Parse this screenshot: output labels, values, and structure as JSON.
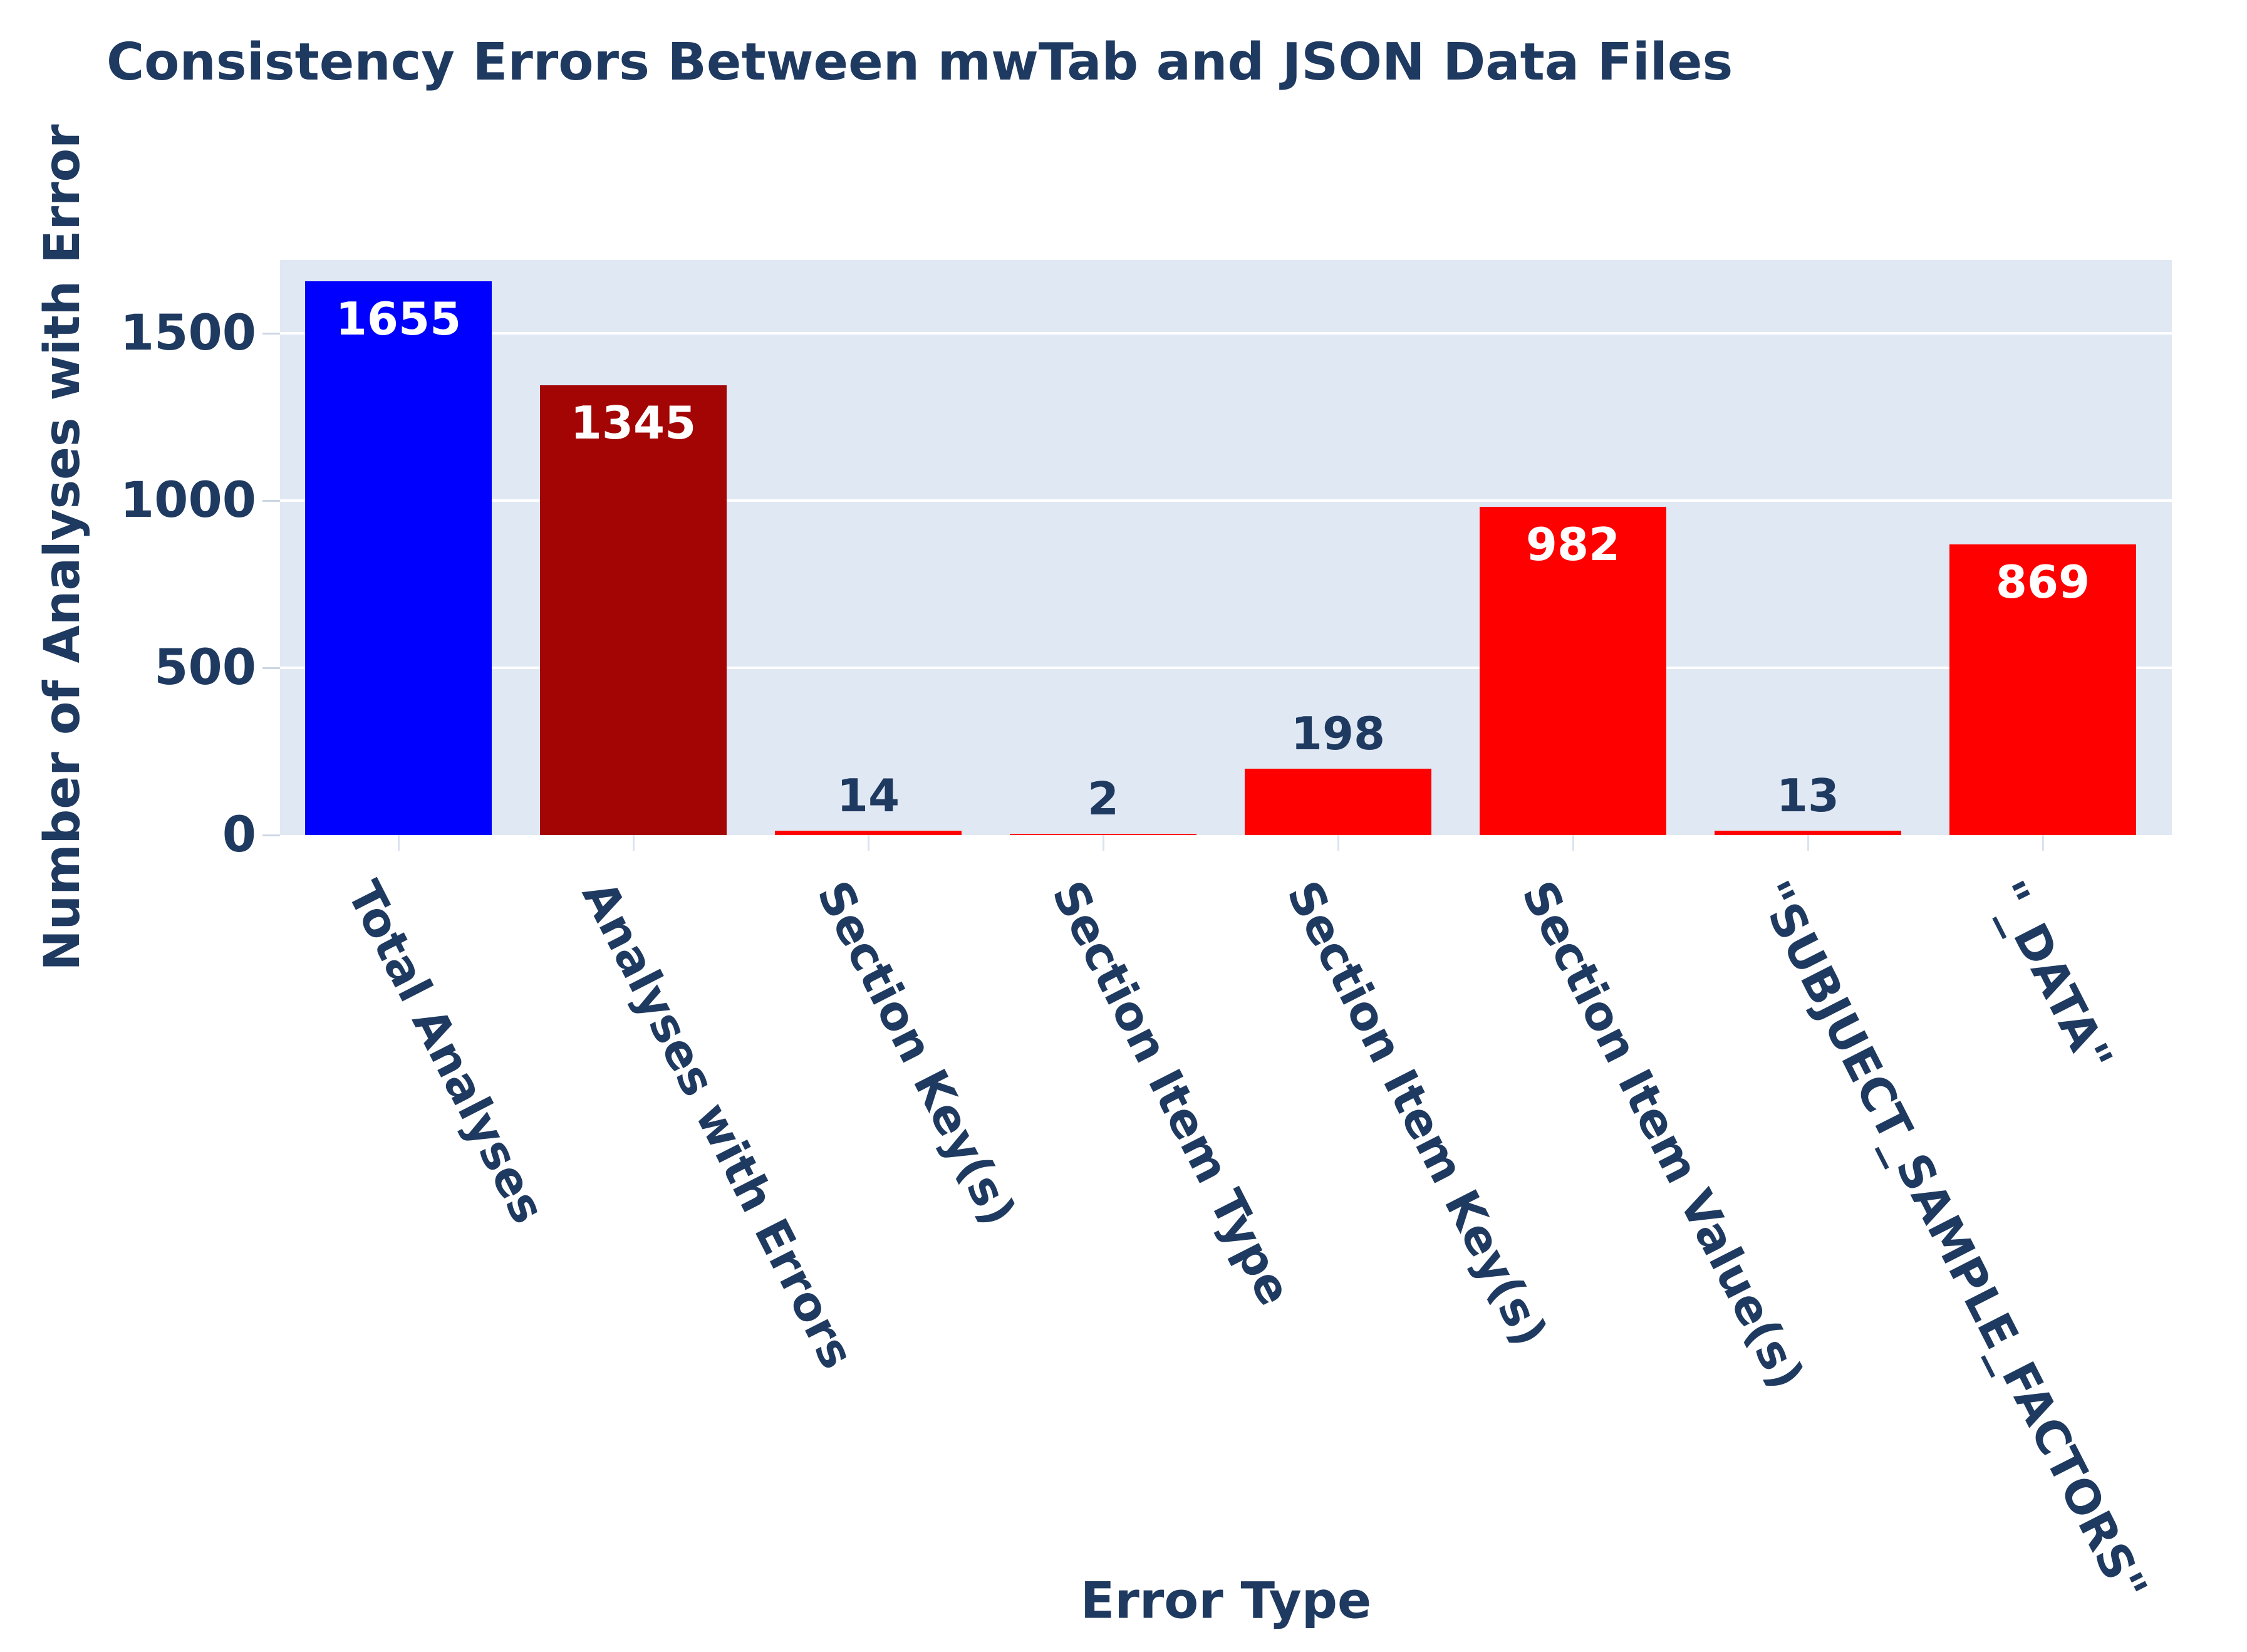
{
  "chart_data": {
    "type": "bar",
    "title": "Consistency Errors Between mwTab and JSON Data Files",
    "xlabel": "Error Type",
    "ylabel": "Number of Analyses with Error",
    "categories": [
      "Total Analyses",
      "Analyses with Errors",
      "Section Key(s)",
      "Section Item Type",
      "Section Item Key(s)",
      "Section Item Value(s)",
      "\"SUBJUECT_SAMPLE_FACTORS\"",
      "\"_DATA\""
    ],
    "values": [
      1655,
      1345,
      14,
      2,
      198,
      982,
      13,
      869
    ],
    "bar_labels": [
      "1655",
      "1345",
      "14",
      "2",
      "198",
      "982",
      "13",
      "869"
    ],
    "bar_colors": [
      "#0000ff",
      "#a30505",
      "#ff0000",
      "#ff0000",
      "#ff0000",
      "#ff0000",
      "#ff0000",
      "#ff0000"
    ],
    "yticks": [
      0,
      500,
      1000,
      1500
    ],
    "ylim": [
      0,
      1719
    ],
    "grid": true,
    "legend": "none",
    "styles": {
      "text_color": "#1f3a60",
      "plot_bg": "#e0e8f3",
      "grid_color": "#ffffff",
      "tick_mark_color": "#ccd6e4",
      "inside_label_color": "#ffffff"
    }
  }
}
